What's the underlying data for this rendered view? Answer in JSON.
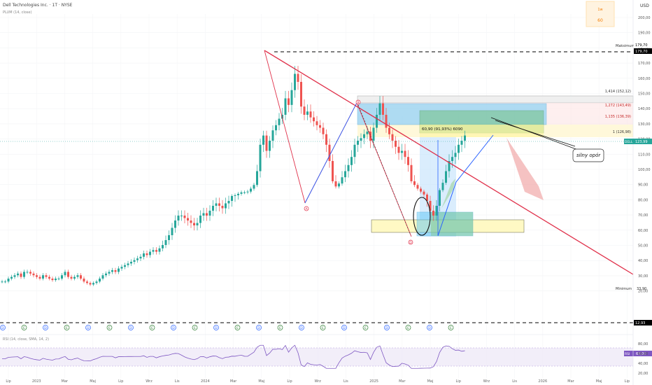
{
  "header": {
    "symbol_line": "Dell Technologies Inc. · 1T · NYSE",
    "indicator_line": "PLUM (14, close)",
    "currency": "USD",
    "timeframe_badge": {
      "top": "1w",
      "bottom": "60"
    }
  },
  "price_axis": {
    "ticks": [
      "200,00",
      "190,00",
      "180,00",
      "170,00",
      "160,00",
      "150,00",
      "140,00",
      "130,00",
      "120,00",
      "110,00",
      "100,00",
      "90,00",
      "80,00",
      "70,00",
      "60,00",
      "50,00",
      "40,00",
      "30,00",
      "20,00"
    ],
    "max_label": "Maksimum",
    "max_value": "179,70",
    "min_label": "Minimum",
    "min_value": "33,90",
    "last_symbol": "DELL",
    "last_price": "123,99",
    "low_line_value": "12,93"
  },
  "fib_labels": [
    "1,414 (152,12)",
    "1,272 (143,49)",
    "1,135 (136,39)",
    "1 (126,98)"
  ],
  "measure_label": "60,90 (91,93%) 6090",
  "callout": "silny opór",
  "points": {
    "A": "A",
    "B": "B",
    "D": "D"
  },
  "events": [
    "D",
    "E",
    "D",
    "E",
    "D",
    "E",
    "D",
    "E",
    "D",
    "E",
    "D",
    "E",
    "D",
    "E",
    "D",
    "E",
    "D",
    "E",
    "D",
    "E",
    "D",
    "E"
  ],
  "rsi": {
    "label": "RSI (14, close, SMA, 14, 2)",
    "tag": "RSI",
    "value": "60,00",
    "ticks": [
      "80,00",
      "60,00",
      "40,00",
      "20,00"
    ]
  },
  "time_axis": [
    "Lip",
    "2023",
    "Mar",
    "Maj",
    "Lip",
    "Wrz",
    "Lis",
    "2024",
    "Mar",
    "Maj",
    "Lip",
    "Wrz",
    "Lis",
    "2025",
    "Mar",
    "Maj",
    "Lip",
    "Wrz",
    "Lis",
    "2026",
    "Mar",
    "Maj",
    "Lip"
  ],
  "colors": {
    "up": "#26a69a",
    "down": "#ef5350",
    "trend": "#e0304a",
    "blue": "#2962ff",
    "rsi": "#7e57c2"
  },
  "chart_data": {
    "type": "candlestick",
    "title": "Dell Technologies Inc. · 1T · NYSE",
    "ylabel": "USD",
    "ylim": [
      20,
      200
    ],
    "series": [
      {
        "name": "DELL",
        "values": [
          38,
          38,
          40,
          41,
          42,
          43,
          41,
          44,
          44,
          43,
          42,
          41,
          40,
          42,
          41,
          40,
          39,
          40,
          40,
          42,
          44,
          41,
          40,
          41,
          42,
          40,
          38,
          37,
          36,
          37,
          38,
          40,
          42,
          43,
          44,
          45,
          44,
          46,
          47,
          48,
          49,
          50,
          51,
          52,
          53,
          55,
          54,
          56,
          57,
          56,
          58,
          60,
          62,
          64,
          67,
          70,
          72,
          72,
          71,
          70,
          69,
          68,
          69,
          72,
          73,
          72,
          74,
          76,
          77,
          76,
          75,
          77,
          78,
          80,
          81,
          83,
          85,
          85,
          86,
          90,
          95,
          105,
          118,
          124,
          115,
          120,
          128,
          132,
          137,
          140,
          150,
          146,
          155,
          165,
          160,
          145,
          140,
          142,
          138,
          135,
          132,
          130,
          125,
          118,
          110,
          100,
          93,
          97,
          102,
          105,
          108,
          112,
          118,
          120,
          122,
          125,
          127,
          120,
          130,
          140,
          147,
          140,
          130,
          125,
          120,
          117,
          114,
          115,
          112,
          108,
          100,
          95,
          90,
          86,
          82,
          78,
          74,
          72,
          76,
          88,
          98,
          105,
          110,
          112,
          114,
          118,
          120,
          124
        ]
      }
    ]
  }
}
